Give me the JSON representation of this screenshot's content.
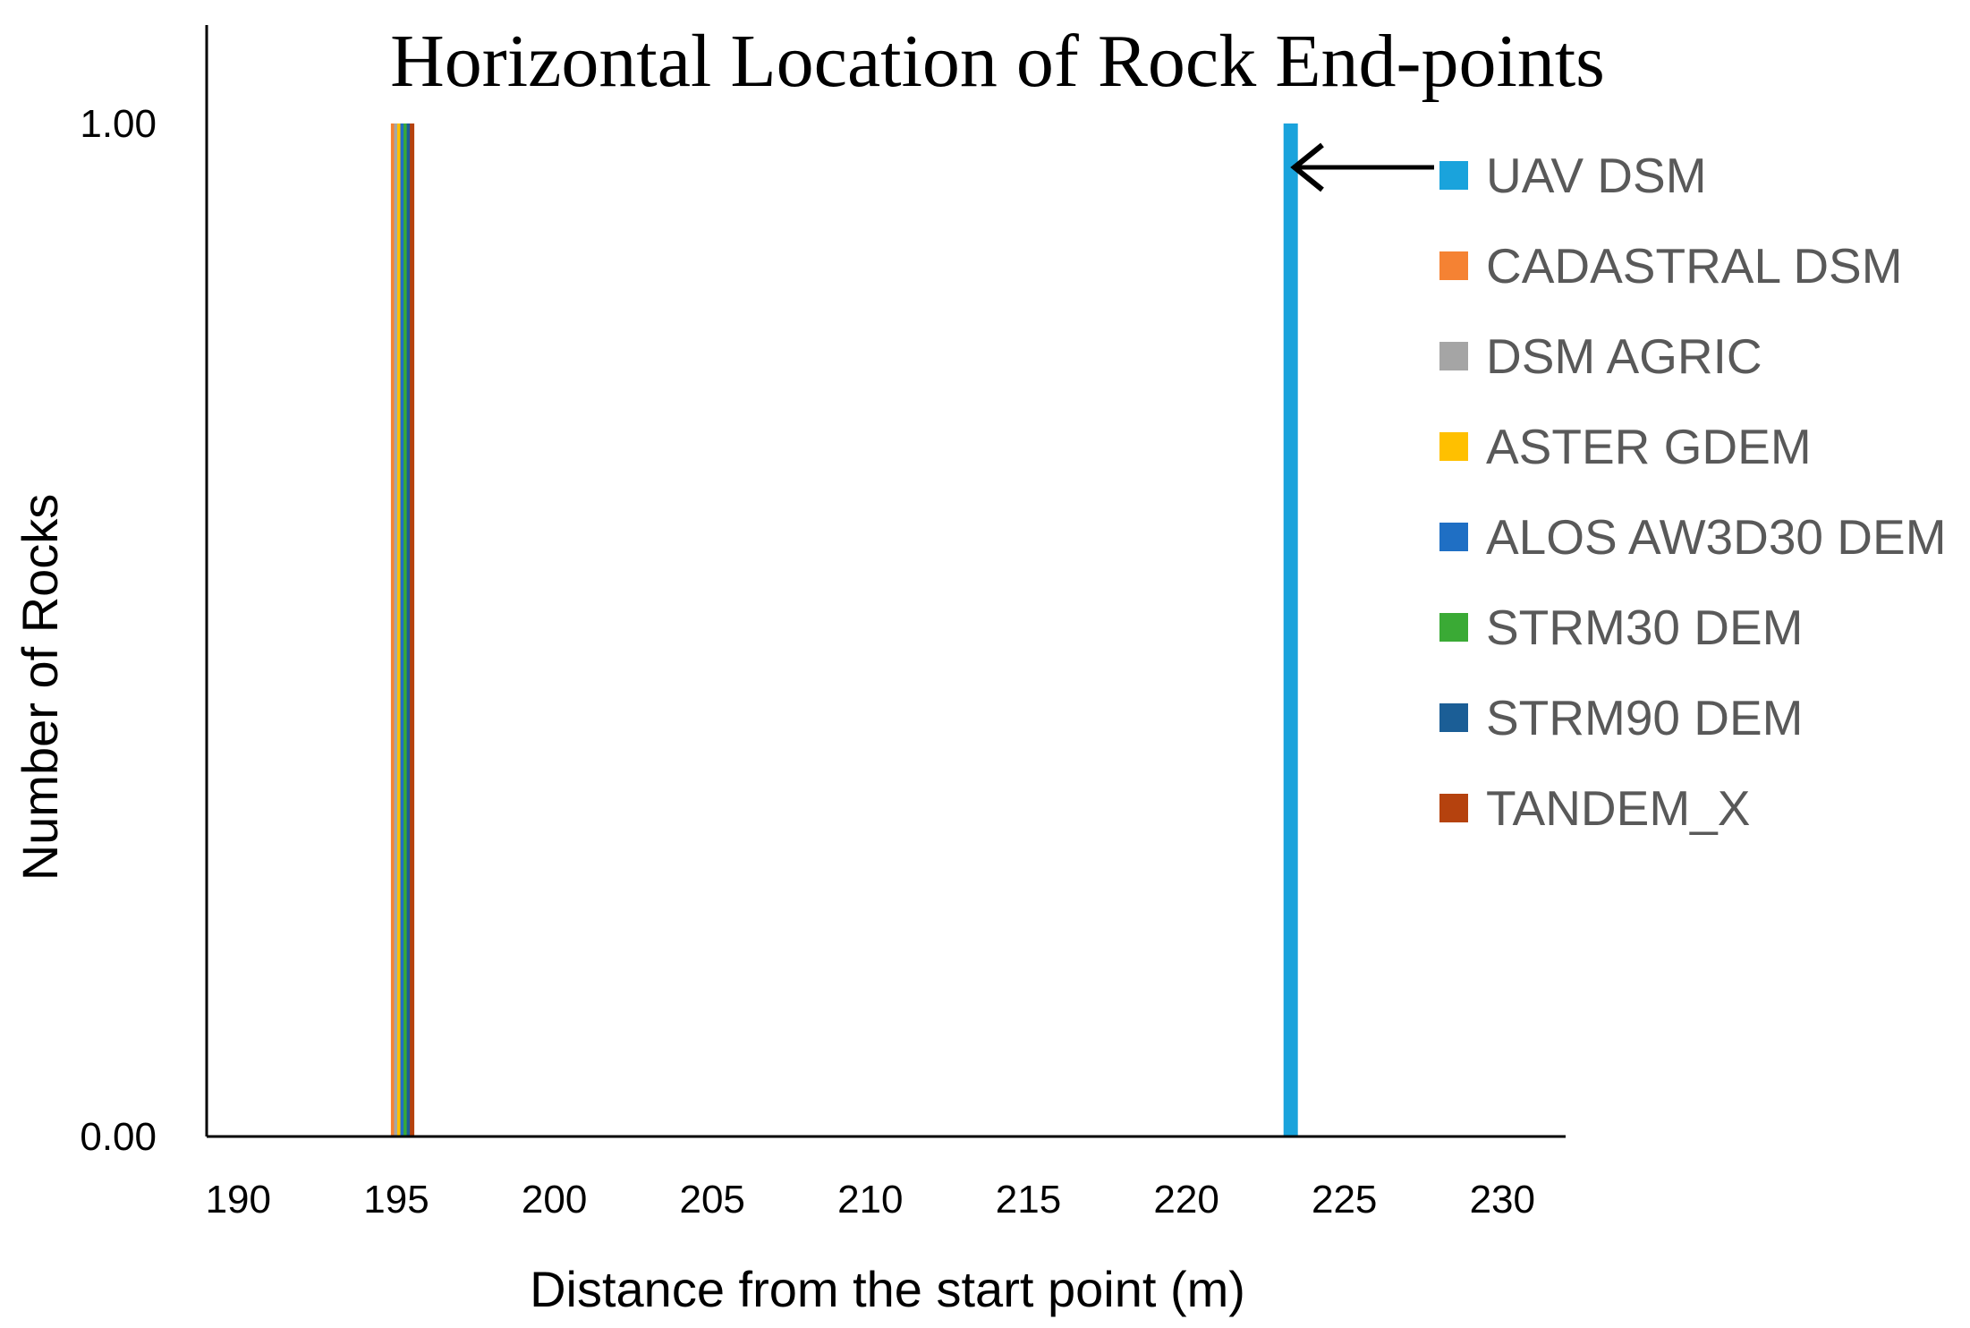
{
  "chart_data": {
    "type": "bar",
    "title": "Horizontal Location of Rock End-points",
    "xlabel": "Distance from the start point (m)",
    "ylabel": "Number of Rocks",
    "xlim": [
      189,
      232
    ],
    "ylim": [
      0,
      1
    ],
    "x_ticks": [
      "190",
      "195",
      "200",
      "205",
      "210",
      "215",
      "220",
      "225",
      "230"
    ],
    "y_ticks": [
      "0.00",
      "1.00"
    ],
    "legend_position": "right",
    "grid": false,
    "series": [
      {
        "name": "UAV DSM",
        "color": "#1aa3dc",
        "x": 223.3,
        "value": 1
      },
      {
        "name": "CADASTRAL DSM",
        "color": "#f58233",
        "x": 194.9,
        "value": 1
      },
      {
        "name": "DSM AGRIC",
        "color": "#a5a5a5",
        "x": 195.0,
        "value": 1
      },
      {
        "name": "ASTER GDEM",
        "color": "#ffc000",
        "x": 195.1,
        "value": 1
      },
      {
        "name": "ALOS AW3D30 DEM",
        "color": "#1f6fc4",
        "x": 195.2,
        "value": 1
      },
      {
        "name": "STRM30 DEM",
        "color": "#3aaa35",
        "x": 195.3,
        "value": 1
      },
      {
        "name": "STRM90 DEM",
        "color": "#1b5e96",
        "x": 195.4,
        "value": 1
      },
      {
        "name": "TANDEM_X",
        "color": "#b5420e",
        "x": 195.5,
        "value": 1
      }
    ]
  }
}
